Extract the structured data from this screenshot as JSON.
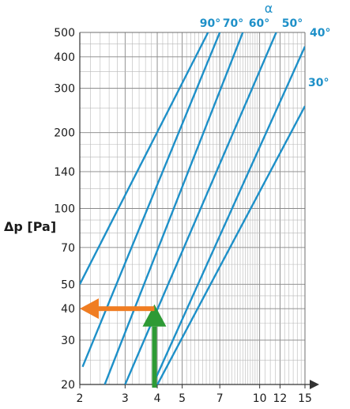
{
  "chart_data": {
    "type": "line",
    "xscale": "log",
    "yscale": "log",
    "xlim": [
      2,
      15
    ],
    "ylim": [
      20,
      500
    ],
    "grid": true,
    "ylabel": "Δp [Pa]",
    "xlabel": "",
    "x_ticks": [
      "2",
      "3",
      "4",
      "5",
      "7",
      "10",
      "12",
      "15"
    ],
    "y_ticks": [
      "20",
      "30",
      "40",
      "50",
      "70",
      "100",
      "140",
      "200",
      "300",
      "400",
      "500"
    ],
    "legend_title": "α",
    "line_color": "#1e90c8",
    "series": [
      {
        "name": "90°",
        "points": [
          [
            2,
            50
          ],
          [
            6.3,
            500
          ]
        ]
      },
      {
        "name": "70°",
        "points": [
          [
            2.05,
            23.5
          ],
          [
            7.0,
            500
          ]
        ]
      },
      {
        "name": "60°",
        "points": [
          [
            2.5,
            20
          ],
          [
            8.6,
            500
          ]
        ]
      },
      {
        "name": "50°",
        "points": [
          [
            3.0,
            20
          ],
          [
            11.6,
            500
          ]
        ]
      },
      {
        "name": "40°",
        "points": [
          [
            3.85,
            20
          ],
          [
            15,
            440
          ]
        ]
      },
      {
        "name": "30°",
        "points": [
          [
            3.9,
            19
          ],
          [
            15,
            255
          ]
        ]
      }
    ],
    "annotations": [
      {
        "name": "green-arrow",
        "color": "#2e9a35",
        "from": [
          3.9,
          19
        ],
        "to": [
          3.9,
          41
        ],
        "direction": "up"
      },
      {
        "name": "orange-arrow",
        "color": "#f07d22",
        "from": [
          3.9,
          40
        ],
        "to": [
          2,
          40
        ],
        "direction": "left"
      }
    ]
  }
}
